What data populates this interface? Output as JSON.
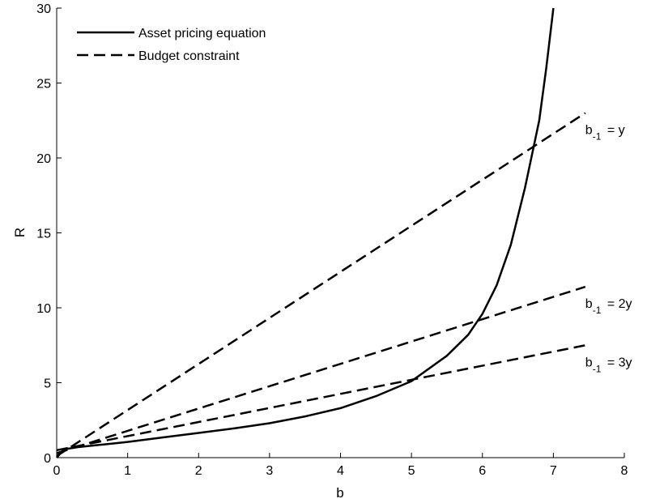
{
  "chart_data": {
    "type": "line",
    "title": "",
    "xlabel": "b",
    "ylabel": "R",
    "xlim": [
      0,
      8
    ],
    "ylim": [
      0,
      30
    ],
    "xticks": [
      "0",
      "1",
      "2",
      "3",
      "4",
      "5",
      "6",
      "7",
      "8"
    ],
    "yticks": [
      "0",
      "5",
      "10",
      "15",
      "20",
      "25",
      "30"
    ],
    "grid": false,
    "legend_position": "top-left",
    "legend": [
      {
        "label": "Asset pricing equation",
        "style": "solid"
      },
      {
        "label": "Budget constraint",
        "style": "dashed"
      }
    ],
    "series": [
      {
        "name": "Asset pricing equation",
        "style": "solid",
        "x": [
          0,
          0.1,
          0.3,
          0.6,
          1.0,
          1.5,
          2.0,
          2.5,
          3.0,
          3.5,
          4.0,
          4.5,
          5.0,
          5.5,
          5.8,
          6.0,
          6.2,
          6.4,
          6.6,
          6.8,
          6.9,
          7.0
        ],
        "y": [
          0,
          0.55,
          0.7,
          0.85,
          1.05,
          1.35,
          1.65,
          1.95,
          2.3,
          2.75,
          3.3,
          4.1,
          5.1,
          6.8,
          8.2,
          9.6,
          11.5,
          14.2,
          18.0,
          22.5,
          26.0,
          30.0
        ]
      },
      {
        "name": "Budget constraint",
        "style": "dashed",
        "annotation": {
          "base": "b",
          "sub": "-1",
          "rest": " = y"
        },
        "x": [
          0,
          7.45
        ],
        "y": [
          0.1,
          23.0
        ]
      },
      {
        "name": "Budget constraint",
        "style": "dashed",
        "annotation": {
          "base": "b",
          "sub": "-1",
          "rest": " = 2y"
        },
        "x": [
          0,
          7.45
        ],
        "y": [
          0.3,
          11.4
        ]
      },
      {
        "name": "Budget constraint",
        "style": "dashed",
        "annotation": {
          "base": "b",
          "sub": "-1",
          "rest": " = 3y"
        },
        "x": [
          0,
          7.45
        ],
        "y": [
          0.5,
          7.5
        ]
      }
    ]
  }
}
